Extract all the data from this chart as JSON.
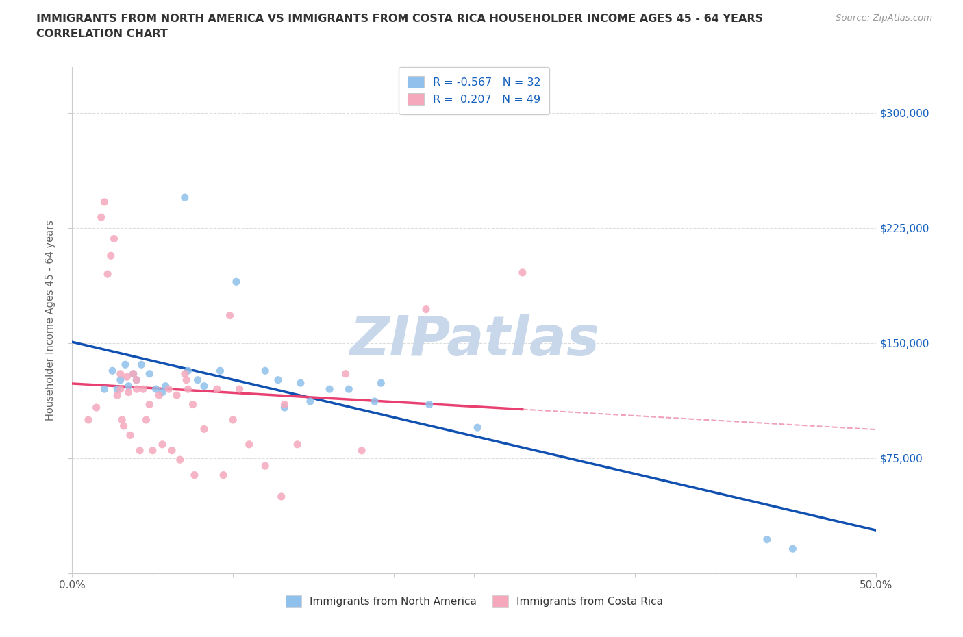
{
  "title_line1": "IMMIGRANTS FROM NORTH AMERICA VS IMMIGRANTS FROM COSTA RICA HOUSEHOLDER INCOME AGES 45 - 64 YEARS",
  "title_line2": "CORRELATION CHART",
  "source_text": "Source: ZipAtlas.com",
  "ylabel": "Householder Income Ages 45 - 64 years",
  "xlim": [
    0.0,
    0.5
  ],
  "ylim": [
    0,
    330000
  ],
  "yticks": [
    0,
    75000,
    150000,
    225000,
    300000
  ],
  "ytick_right_labels": [
    "",
    "$75,000",
    "$150,000",
    "$225,000",
    "$300,000"
  ],
  "xticks": [
    0.0,
    0.05,
    0.1,
    0.15,
    0.2,
    0.25,
    0.3,
    0.35,
    0.4,
    0.45,
    0.5
  ],
  "xtick_labels": [
    "0.0%",
    "",
    "",
    "",
    "",
    "",
    "",
    "",
    "",
    "",
    "50.0%"
  ],
  "r_north_america": -0.567,
  "n_north_america": 32,
  "r_costa_rica": 0.207,
  "n_costa_rica": 49,
  "color_north_america": "#90C0EC",
  "color_costa_rica": "#F5A8BC",
  "trendline_color_north_america": "#1050B0",
  "trendline_color_costa_rica": "#E84070",
  "trendline_dashed_color": "#F0A0B8",
  "watermark_color": "#C8D8EA",
  "north_america_x": [
    0.02,
    0.025,
    0.028,
    0.03,
    0.033,
    0.035,
    0.038,
    0.04,
    0.043,
    0.048,
    0.052,
    0.056,
    0.058,
    0.07,
    0.072,
    0.078,
    0.082,
    0.092,
    0.102,
    0.12,
    0.128,
    0.132,
    0.142,
    0.148,
    0.16,
    0.172,
    0.188,
    0.192,
    0.222,
    0.252,
    0.432,
    0.448
  ],
  "north_america_y": [
    120000,
    132000,
    120000,
    126000,
    136000,
    122000,
    130000,
    126000,
    136000,
    130000,
    120000,
    118000,
    122000,
    245000,
    132000,
    126000,
    122000,
    132000,
    190000,
    132000,
    126000,
    108000,
    124000,
    112000,
    120000,
    120000,
    112000,
    124000,
    110000,
    95000,
    22000,
    16000
  ],
  "costa_rica_x": [
    0.01,
    0.015,
    0.018,
    0.02,
    0.022,
    0.024,
    0.026,
    0.028,
    0.03,
    0.03,
    0.031,
    0.032,
    0.034,
    0.035,
    0.036,
    0.038,
    0.04,
    0.04,
    0.042,
    0.044,
    0.046,
    0.048,
    0.05,
    0.054,
    0.056,
    0.06,
    0.062,
    0.065,
    0.067,
    0.07,
    0.071,
    0.072,
    0.075,
    0.076,
    0.082,
    0.09,
    0.094,
    0.098,
    0.1,
    0.104,
    0.11,
    0.12,
    0.13,
    0.132,
    0.14,
    0.17,
    0.18,
    0.22,
    0.28
  ],
  "costa_rica_y": [
    100000,
    108000,
    232000,
    242000,
    195000,
    207000,
    218000,
    116000,
    120000,
    130000,
    100000,
    96000,
    128000,
    118000,
    90000,
    130000,
    126000,
    120000,
    80000,
    120000,
    100000,
    110000,
    80000,
    116000,
    84000,
    120000,
    80000,
    116000,
    74000,
    130000,
    126000,
    120000,
    110000,
    64000,
    94000,
    120000,
    64000,
    168000,
    100000,
    120000,
    84000,
    70000,
    50000,
    110000,
    84000,
    130000,
    80000,
    172000,
    196000
  ]
}
